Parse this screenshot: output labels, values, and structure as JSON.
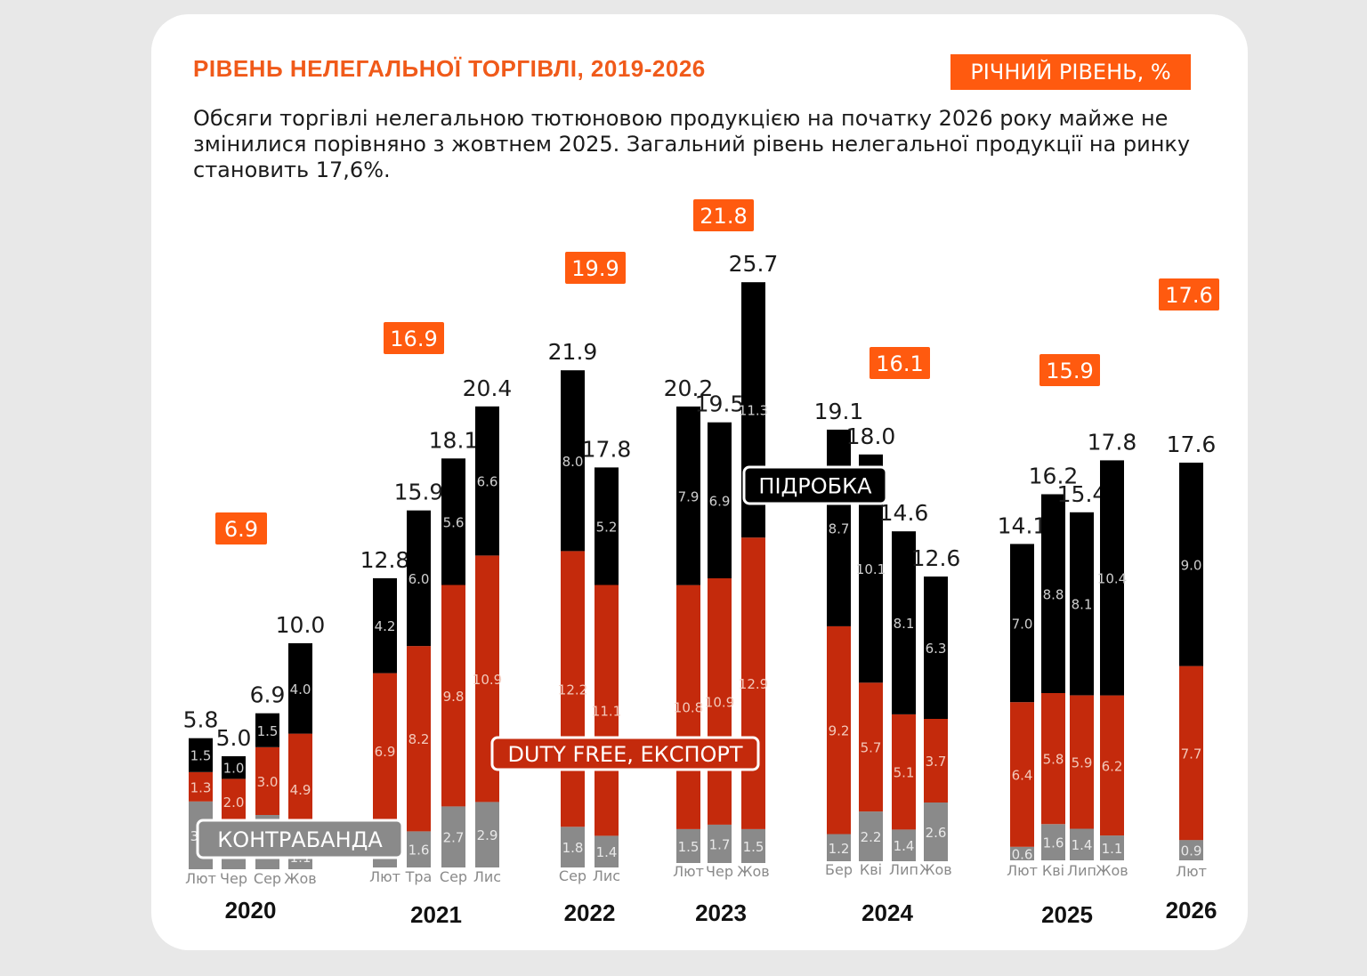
{
  "header": {
    "title": "РІВЕНЬ НЕЛЕГАЛЬНОЇ ТОРГІВЛІ, 2019-2026",
    "annual_badge": "РІЧНИЙ РІВЕНЬ, %",
    "subtitle": "Обсяги торгівлі нелегальною тютюновою продукцією на початку 2026 року майже не змінилися порівняно з жовтнем 2025. Загальний рівень нелегальної продукції на ринку становить 17,6%."
  },
  "colors": {
    "accent": "#ff5a0f",
    "contraband": "#8a8a8a",
    "duty_free": "#c42a0c",
    "counterfeit": "#000000"
  },
  "chart_data": {
    "type": "bar",
    "stacked": true,
    "segment_order": [
      "contraband",
      "duty_free",
      "counterfeit"
    ],
    "series_labels": {
      "contraband": "КОНТРАБАНДА",
      "duty_free": "DUTY FREE, ЕКСПОРТ",
      "counterfeit": "ПІДРОБКА"
    },
    "years": [
      {
        "year": "2020",
        "annual": "6.9",
        "bars": [
          {
            "month": "Лют",
            "total": "5.8",
            "contraband": 3.0,
            "duty_free": 1.3,
            "counterfeit": 1.5
          },
          {
            "month": "Чер",
            "total": "5.0",
            "contraband": 2.0,
            "duty_free": 2.0,
            "counterfeit": 1.0
          },
          {
            "month": "Сер",
            "total": "6.9",
            "contraband": 2.4,
            "duty_free": 3.0,
            "counterfeit": 1.5
          },
          {
            "month": "Жов",
            "total": "10.0",
            "contraband": 1.1,
            "duty_free": 4.9,
            "counterfeit": 4.0
          }
        ]
      },
      {
        "year": "2021",
        "annual": "16.9",
        "bars": [
          {
            "month": "Лют",
            "total": "12.8",
            "contraband": 1.7,
            "duty_free": 6.9,
            "counterfeit": 4.2
          },
          {
            "month": "Тра",
            "total": "15.9",
            "contraband": 1.6,
            "duty_free": 8.2,
            "counterfeit": 6.0
          },
          {
            "month": "Сер",
            "total": "18.1",
            "contraband": 2.7,
            "duty_free": 9.8,
            "counterfeit": 5.6
          },
          {
            "month": "Лис",
            "total": "20.4",
            "contraband": 2.9,
            "duty_free": 10.9,
            "counterfeit": 6.6
          }
        ]
      },
      {
        "year": "2022",
        "annual": "19.9",
        "bars": [
          {
            "month": "Сер",
            "total": "21.9",
            "contraband": 1.8,
            "duty_free": 12.2,
            "counterfeit": 8.0
          },
          {
            "month": "Лис",
            "total": "17.8",
            "contraband": 1.4,
            "duty_free": 11.1,
            "counterfeit": 5.2
          }
        ]
      },
      {
        "year": "2023",
        "annual": "21.8",
        "bars": [
          {
            "month": "Лют",
            "total": "20.2",
            "contraband": 1.5,
            "duty_free": 10.8,
            "counterfeit": 7.9
          },
          {
            "month": "Чер",
            "total": "19.5",
            "contraband": 1.7,
            "duty_free": 10.9,
            "counterfeit": 6.9
          },
          {
            "month": "Жов",
            "total": "25.7",
            "contraband": 1.5,
            "duty_free": 12.9,
            "counterfeit": 11.3
          }
        ]
      },
      {
        "year": "2024",
        "annual": "16.1",
        "bars": [
          {
            "month": "Бер",
            "total": "19.1",
            "contraband": 1.2,
            "duty_free": 9.2,
            "counterfeit": 8.7
          },
          {
            "month": "Кві",
            "total": "18.0",
            "contraband": 2.2,
            "duty_free": 5.7,
            "counterfeit": 10.1
          },
          {
            "month": "Лип",
            "total": "14.6",
            "contraband": 1.4,
            "duty_free": 5.1,
            "counterfeit": 8.1
          },
          {
            "month": "Жов",
            "total": "12.6",
            "contraband": 2.6,
            "duty_free": 3.7,
            "counterfeit": 6.3
          }
        ]
      },
      {
        "year": "2025",
        "annual": "15.9",
        "bars": [
          {
            "month": "Лют",
            "total": "14.1",
            "contraband": 0.6,
            "duty_free": 6.4,
            "counterfeit": 7.0
          },
          {
            "month": "Кві",
            "total": "16.2",
            "contraband": 1.6,
            "duty_free": 5.8,
            "counterfeit": 8.8
          },
          {
            "month": "Лип",
            "total": "15.4",
            "contraband": 1.4,
            "duty_free": 5.9,
            "counterfeit": 8.1
          },
          {
            "month": "Жов",
            "total": "17.8",
            "contraband": 1.1,
            "duty_free": 6.2,
            "counterfeit": 10.4
          }
        ]
      },
      {
        "year": "2026",
        "annual": "17.6",
        "bars": [
          {
            "month": "Лют",
            "total": "17.6",
            "contraband": 0.9,
            "duty_free": 7.7,
            "counterfeit": 9.0
          }
        ]
      }
    ]
  }
}
